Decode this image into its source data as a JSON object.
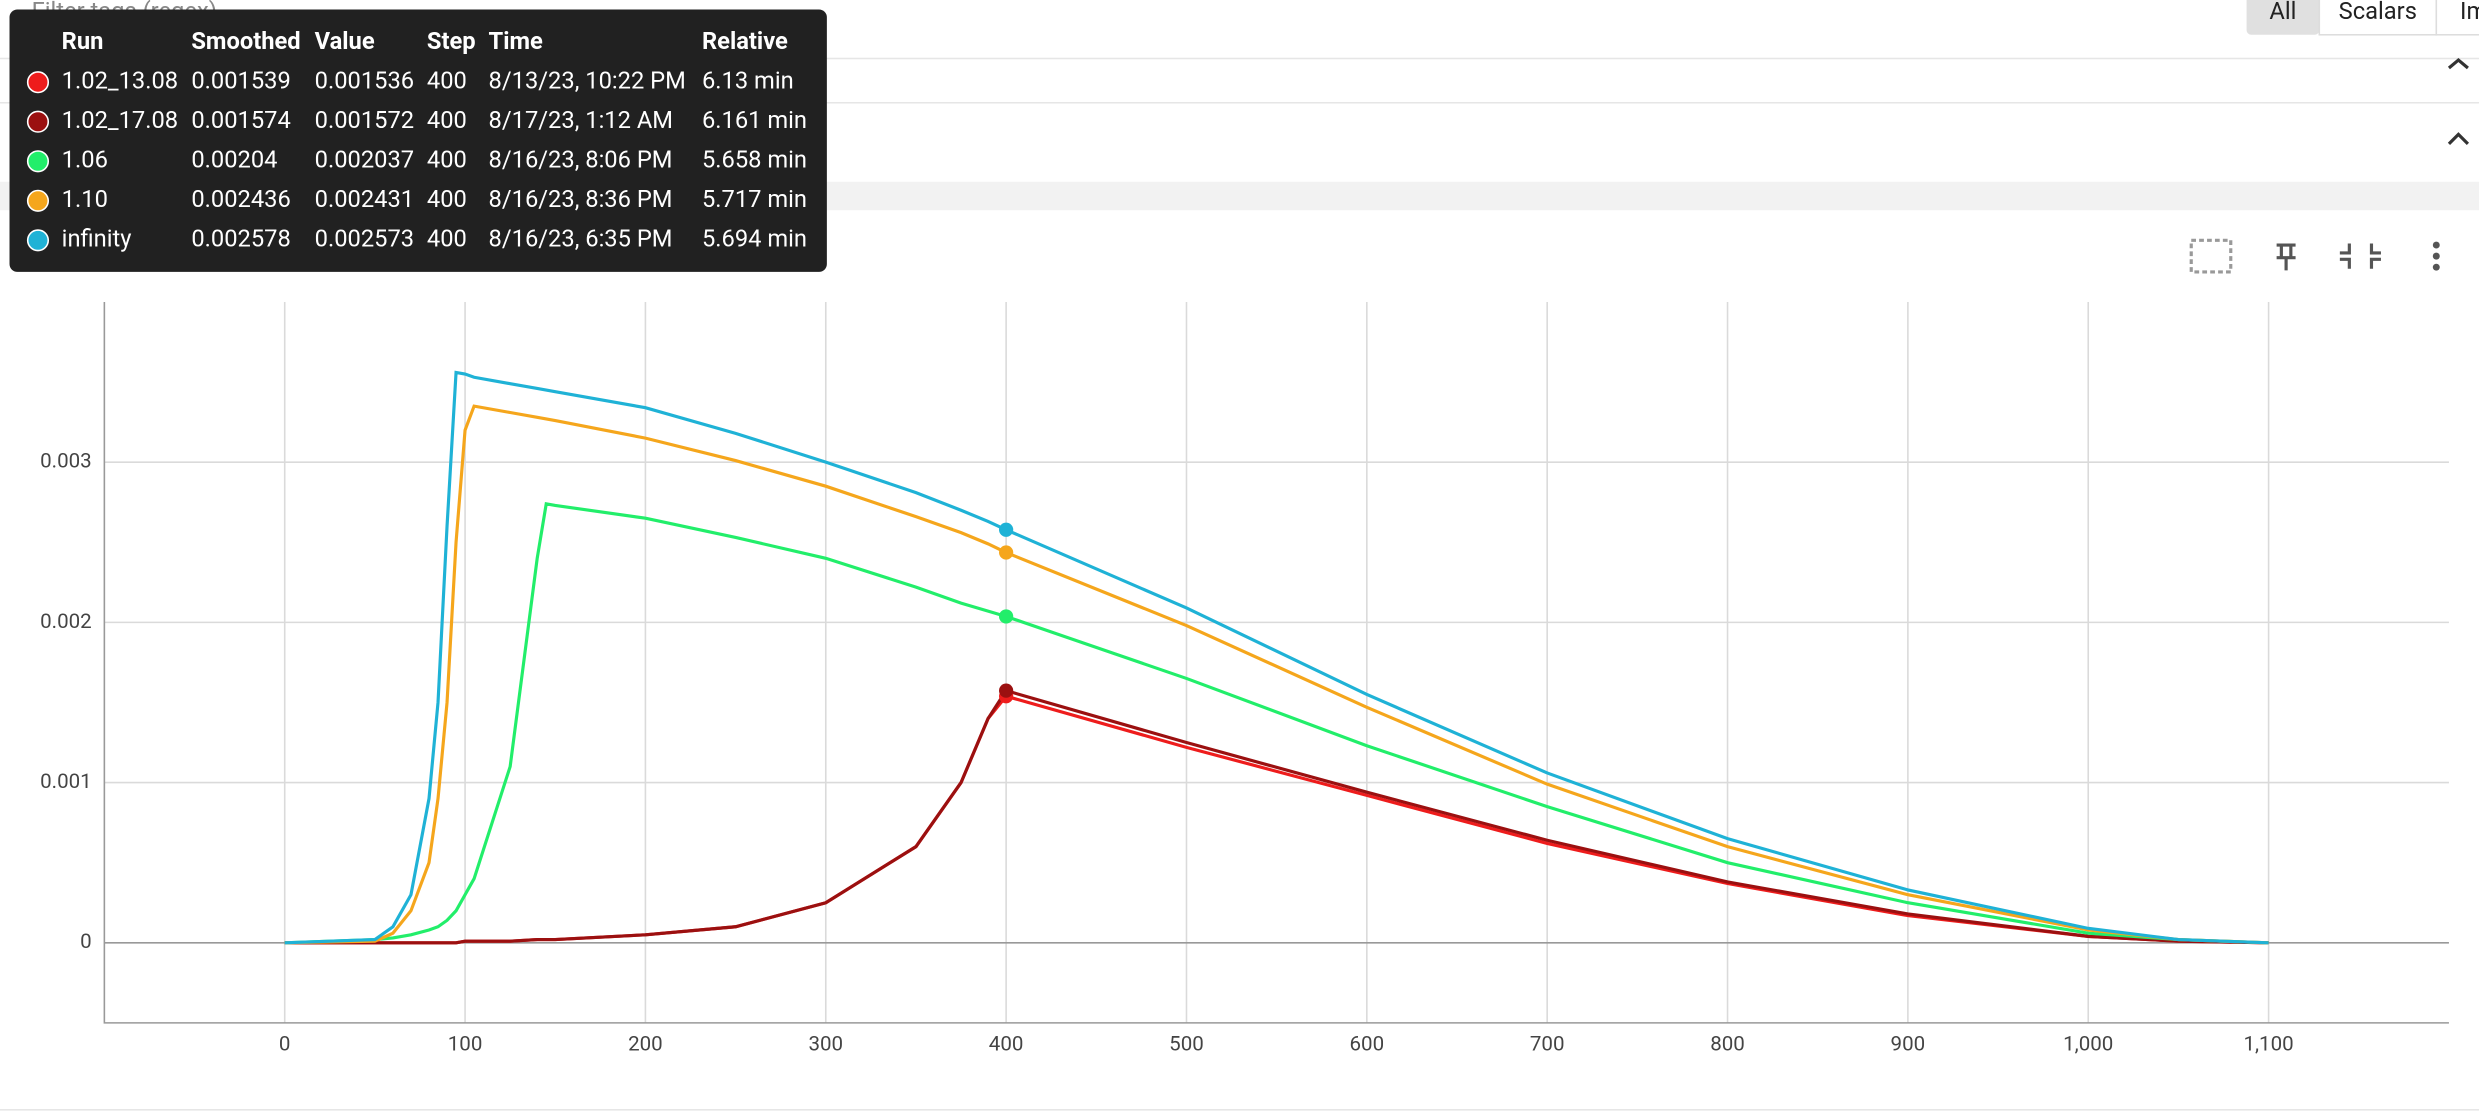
{
  "toolbar": {
    "filter_placeholder": "Filter tags (regex)",
    "tabs": [
      "All",
      "Scalars",
      "Images"
    ]
  },
  "tooltip": {
    "header": [
      "Run",
      "Smoothed",
      "Value",
      "Step",
      "Time",
      "Relative"
    ],
    "rows": [
      [
        "0.001539",
        "0.001536",
        "400",
        "8/13/23, 10:22 PM",
        "6.13 min"
      ],
      [
        "0.001574",
        "0.001572",
        "400",
        "8/17/23, 1:12 AM",
        "6.161 min"
      ],
      [
        "0.00204",
        "0.002037",
        "400",
        "8/16/23, 8:06 PM",
        "5.658 min"
      ],
      [
        "0.002436",
        "0.002431",
        "400",
        "8/16/23, 8:36 PM",
        "5.717 min"
      ],
      [
        "0.002578",
        "0.002573",
        "400",
        "8/16/23, 6:35 PM",
        "5.694 min"
      ]
    ]
  },
  "chart_data": {
    "type": "line",
    "x": [
      0,
      50,
      60,
      70,
      80,
      85,
      90,
      95,
      100,
      105,
      125,
      140,
      145,
      150,
      200,
      250,
      300,
      350,
      375,
      390,
      400,
      500,
      600,
      700,
      800,
      900,
      1000,
      1050,
      1100
    ],
    "series": [
      {
        "name": "1.02_13.08",
        "color": "#ee1c1c",
        "values": [
          0,
          0,
          0,
          0,
          0,
          0,
          0,
          0,
          1e-05,
          1e-05,
          1e-05,
          2e-05,
          2e-05,
          2e-05,
          5e-05,
          0.0001,
          0.00025,
          0.0006,
          0.001,
          0.0014,
          0.001539,
          0.00122,
          0.00092,
          0.00062,
          0.00037,
          0.00017,
          4e-05,
          1e-05,
          0
        ]
      },
      {
        "name": "1.02_17.08",
        "color": "#9b1010",
        "values": [
          0,
          0,
          0,
          0,
          0,
          0,
          0,
          0,
          1e-05,
          1e-05,
          1e-05,
          2e-05,
          2e-05,
          2e-05,
          5e-05,
          0.0001,
          0.00025,
          0.0006,
          0.001,
          0.0014,
          0.001574,
          0.00125,
          0.00094,
          0.00064,
          0.00038,
          0.00018,
          4e-05,
          1e-05,
          0
        ]
      },
      {
        "name": "1.06",
        "color": "#22ee6a",
        "values": [
          0,
          2e-05,
          3e-05,
          5e-05,
          8e-05,
          0.0001,
          0.00014,
          0.0002,
          0.0003,
          0.0004,
          0.0011,
          0.0024,
          0.00274,
          0.00273,
          0.00265,
          0.00253,
          0.0024,
          0.00222,
          0.00212,
          0.00207,
          0.002037,
          0.00165,
          0.00123,
          0.00085,
          0.0005,
          0.00025,
          6e-05,
          2e-05,
          0
        ]
      },
      {
        "name": "1.10",
        "color": "#f5a61c",
        "values": [
          0,
          1e-05,
          6e-05,
          0.0002,
          0.0005,
          0.0009,
          0.0015,
          0.0025,
          0.0032,
          0.00335,
          0.00331,
          0.00328,
          0.00327,
          0.00326,
          0.00315,
          0.00301,
          0.00285,
          0.00266,
          0.00256,
          0.00249,
          0.002436,
          0.00198,
          0.00147,
          0.00099,
          0.0006,
          0.0003,
          8e-05,
          2e-05,
          0
        ]
      },
      {
        "name": "infinity",
        "color": "#1fb2d6",
        "values": [
          0,
          2e-05,
          0.0001,
          0.0003,
          0.0009,
          0.0015,
          0.0026,
          0.00356,
          0.00355,
          0.00353,
          0.00349,
          0.00346,
          0.00345,
          0.00344,
          0.00334,
          0.00318,
          0.003,
          0.00281,
          0.0027,
          0.00263,
          0.002578,
          0.00209,
          0.00155,
          0.00106,
          0.00065,
          0.00033,
          9e-05,
          2e-05,
          0
        ]
      }
    ],
    "highlight_index": 20,
    "xlim": [
      -100,
      1200
    ],
    "xticks": [
      0,
      100,
      200,
      300,
      400,
      500,
      600,
      700,
      800,
      900,
      {
        "value": 1000,
        "label": "1,000"
      },
      {
        "value": 1100,
        "label": "1,100"
      }
    ],
    "ylim": [
      -0.0005,
      0.004
    ],
    "yticks": [
      0,
      0.001,
      0.002,
      0.003
    ],
    "grid": true
  }
}
